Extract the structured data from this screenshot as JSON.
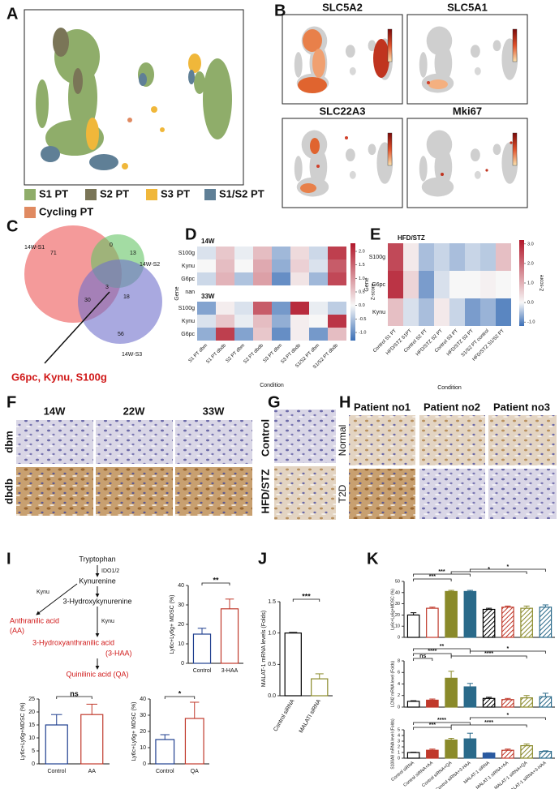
{
  "panel_labels": [
    "A",
    "B",
    "C",
    "D",
    "E",
    "F",
    "G",
    "H",
    "I",
    "J",
    "K"
  ],
  "umap": {
    "legend": [
      {
        "name": "S1 PT",
        "color": "#8fad6a"
      },
      {
        "name": "S2 PT",
        "color": "#7a7557"
      },
      {
        "name": "S3 PT",
        "color": "#f0b73a"
      },
      {
        "name": "S1/S2 PT",
        "color": "#5f7f96"
      },
      {
        "name": "Cycling PT",
        "color": "#e08a61"
      }
    ]
  },
  "feature_plots": [
    "SLC5A2",
    "SLC5A1",
    "SLC22A3",
    "Mki67"
  ],
  "venn": {
    "sets": [
      "14W-S1",
      "14W-S2",
      "14W-S3"
    ],
    "regions": [
      71,
      0,
      13,
      3,
      30,
      18,
      56
    ],
    "callout": "G6pc, Kynu, S100g"
  },
  "heatmap_d": {
    "groups": [
      "14W",
      "33W"
    ],
    "rows": [
      "S100g",
      "Kynu",
      "G6pc",
      "nan",
      "S100g",
      "Kynu",
      "G6pc"
    ],
    "columns": [
      "S1 PT dbm",
      "S1 PT dbdb",
      "S2 PT dbm",
      "S2 PT dbdb",
      "S3 PT dbm",
      "S3 PT dbdb",
      "S1/S2 PT dbm",
      "S1/S2 PT dbdb"
    ],
    "values": [
      [
        -0.2,
        0.5,
        -0.1,
        0.6,
        -0.6,
        0.3,
        -0.3,
        1.9
      ],
      [
        0.0,
        0.6,
        0.0,
        0.8,
        -0.7,
        0.4,
        -0.2,
        1.6
      ],
      [
        -0.3,
        0.7,
        -0.5,
        0.9,
        -1.0,
        0.2,
        -0.6,
        1.8
      ],
      [
        null,
        null,
        null,
        null,
        null,
        null,
        null,
        null
      ],
      [
        -0.8,
        0.1,
        -0.2,
        1.6,
        -0.9,
        2.1,
        -0.1,
        -0.4
      ],
      [
        -0.2,
        0.5,
        -0.1,
        0.6,
        -0.7,
        0.1,
        0.0,
        2.0
      ],
      [
        -0.7,
        1.9,
        -0.8,
        0.5,
        -1.0,
        0.1,
        -0.9,
        0.6
      ]
    ],
    "zlim": [
      -1.3,
      2.3
    ],
    "ticks": [
      {
        "value": 2,
        "label": "2.0"
      },
      {
        "value": 1.5,
        "label": "1.5"
      },
      {
        "value": 1,
        "label": "1.0"
      },
      {
        "value": 0.5,
        "label": "0.5"
      },
      {
        "value": 0,
        "label": "0.0"
      },
      {
        "value": -0.5,
        "label": "-0.5"
      },
      {
        "value": -1,
        "label": "-1.0"
      }
    ],
    "x_label": "Condition",
    "y_label": "Gene",
    "colorbar_label": "Z-score"
  },
  "heatmap_e": {
    "groups": [
      "HFD/STZ"
    ],
    "rows": [
      "S100g",
      "G6pc",
      "Kynu"
    ],
    "columns": [
      "Control S1 PT",
      "HFD/STZ S1PT",
      "Control S2 PT",
      "HFD/STZ S2 PT",
      "Control S3 PT",
      "HFD/STZ S3 PT",
      "S1/S2 PT control",
      "HFD/STZ S1/S2 PT"
    ],
    "values": [
      [
        2.5,
        0.2,
        -0.5,
        -0.3,
        -0.5,
        -0.3,
        -0.4,
        0.8
      ],
      [
        2.8,
        0.5,
        -0.8,
        -0.2,
        0.0,
        0.0,
        0.1,
        0.0
      ],
      [
        0.8,
        -0.2,
        -0.5,
        0.2,
        -0.3,
        -0.8,
        -0.6,
        -1.0
      ]
    ],
    "zlim": [
      -1.2,
      3.2
    ],
    "ticks": [
      {
        "value": 3,
        "label": "3.0"
      },
      {
        "value": 2,
        "label": "2.0"
      },
      {
        "value": 1,
        "label": "1.0"
      },
      {
        "value": 0,
        "label": "0.0"
      },
      {
        "value": -1,
        "label": "-1.0"
      }
    ],
    "x_label": "Condition",
    "y_label": "Gene",
    "colorbar_label": "Z-score"
  },
  "histology": {
    "F": {
      "columns": [
        "14W",
        "22W",
        "33W"
      ],
      "rows": [
        "dbm",
        "dbdb"
      ]
    },
    "G": {
      "rows": [
        "Control",
        "HFD/STZ"
      ]
    },
    "H": {
      "columns": [
        "Patient no1",
        "Patient no2",
        "Patient no3"
      ],
      "rows": [
        "Normal",
        "T2D"
      ]
    }
  },
  "pathway": {
    "nodes": [
      "Tryptophan",
      "Kynurenine",
      "3-Hydroxykynurenine",
      "Anthranilic acid",
      "(AA)",
      "3-Hydroxyanthranilic acid",
      "(3-HAA)",
      "Quinilinic acid (QA)"
    ],
    "enzymes": [
      "IDO1/2",
      "Kynu",
      "Kynu"
    ]
  },
  "chart_data": [
    {
      "type": "bar",
      "y_label": "Ly6c+Ly6g+ MDSC (%)",
      "categories": [
        "Control",
        "3-HAA"
      ],
      "values": [
        15,
        28
      ],
      "errors": [
        3,
        5
      ],
      "colors": [
        "#1f3f8f",
        "#c0392b"
      ],
      "styles": [
        "outline",
        "outline"
      ],
      "ylim": [
        0,
        40
      ],
      "yticks": [
        0,
        10,
        20,
        30,
        40
      ],
      "annotations": [
        "**"
      ]
    },
    {
      "type": "bar",
      "y_label": "Ly6c+Ly6g+MDSC (%)",
      "categories": [
        "Control",
        "AA"
      ],
      "values": [
        15,
        19
      ],
      "errors": [
        4,
        4
      ],
      "colors": [
        "#1f3f8f",
        "#c0392b"
      ],
      "styles": [
        "outline",
        "outline"
      ],
      "ylim": [
        0,
        25
      ],
      "yticks": [
        0,
        5,
        10,
        15,
        20,
        25
      ],
      "annotations": [
        "ns"
      ]
    },
    {
      "type": "bar",
      "y_label": "Ly6c+Ly6g+ MDSC (%)",
      "categories": [
        "Control",
        "QA"
      ],
      "values": [
        15,
        28
      ],
      "errors": [
        3,
        10
      ],
      "colors": [
        "#1f3f8f",
        "#c0392b"
      ],
      "styles": [
        "outline",
        "outline"
      ],
      "ylim": [
        0,
        40
      ],
      "yticks": [
        0,
        10,
        20,
        30,
        40
      ],
      "annotations": [
        "*"
      ]
    },
    {
      "type": "bar",
      "y_label": "MALAT-1 mRNA levels (Folds)",
      "categories": [
        "Control siRNA",
        "MALATI siRNA"
      ],
      "values": [
        1.0,
        0.27
      ],
      "errors": [
        0.01,
        0.08
      ],
      "colors": [
        "#000000",
        "#8a8a2a"
      ],
      "styles": [
        "outline",
        "outline"
      ],
      "ylim": [
        0,
        1.5
      ],
      "yticks": [
        {
          "value": 0,
          "label": "0.0"
        },
        {
          "value": 0.5,
          "label": "0.5"
        },
        {
          "value": 1,
          "label": "1.0"
        },
        {
          "value": 1.5,
          "label": "1.5"
        }
      ],
      "annotations": [
        "***"
      ]
    },
    {
      "type": "bar",
      "y_label": "Ly6c+Ly6g+MDSC (%)",
      "values": [
        20,
        26,
        41,
        41,
        25,
        27,
        26,
        27
      ],
      "errors": [
        2,
        1,
        1,
        1,
        1,
        1,
        2,
        2
      ],
      "colors": [
        "#000000",
        "#c0392b",
        "#8a8a2a",
        "#2a6a8a",
        "#000000",
        "#c0392b",
        "#8a8a2a",
        "#2a6a8a"
      ],
      "styles": [
        "outline",
        "outline",
        "solid",
        "solid",
        "hatch",
        "hatch",
        "hatch",
        "hatch"
      ],
      "ylim": [
        0,
        50
      ],
      "yticks": [
        0,
        10,
        20,
        30,
        40,
        50
      ],
      "annotations": [
        "***",
        "***",
        "*",
        "*"
      ]
    },
    {
      "type": "bar",
      "y_label": "LCN2 mRNA level (Folds)",
      "values": [
        1,
        1.2,
        5,
        3.5,
        1.5,
        1.3,
        1.6,
        1.8
      ],
      "errors": [
        0.1,
        0.2,
        1.2,
        0.6,
        0.2,
        0.2,
        0.4,
        0.6
      ],
      "colors": [
        "#000000",
        "#c0392b",
        "#8a8a2a",
        "#2a6a8a",
        "#000000",
        "#c0392b",
        "#8a8a2a",
        "#2a6a8a"
      ],
      "styles": [
        "outline",
        "solid",
        "solid",
        "solid",
        "hatch",
        "hatch",
        "hatch",
        "hatch"
      ],
      "ylim": [
        0,
        8
      ],
      "yticks": [
        0,
        2,
        4,
        6,
        8
      ],
      "annotations": [
        "ns",
        "****",
        "**",
        "****",
        "*"
      ]
    },
    {
      "type": "bar",
      "y_label": "S100A8 mRNA level (Folds)",
      "categories": [
        "Control siRNA",
        "Control siRNA+AA",
        "Control siRNA+QA",
        "Control siRNA+3-HAA",
        "MALAT-1 siRNA",
        "MALAT-1 siRNA+AA",
        "MALAT-1 siRNA+QA",
        "MALAT-1 siRNA+3-HAA"
      ],
      "values": [
        1,
        1.4,
        3.2,
        3.4,
        0.9,
        1.4,
        2.2,
        1.2
      ],
      "errors": [
        0.05,
        0.2,
        0.3,
        1.0,
        0.05,
        0.2,
        0.3,
        0.1
      ],
      "colors": [
        "#000000",
        "#c0392b",
        "#8a8a2a",
        "#2a6a8a",
        "#2a5aa0",
        "#c0392b",
        "#8a8a2a",
        "#2a6a8a"
      ],
      "styles": [
        "outline",
        "solid",
        "solid",
        "solid",
        "solid",
        "hatch",
        "hatch",
        "hatch"
      ],
      "ylim": [
        0,
        5
      ],
      "yticks": [
        0,
        1,
        2,
        3,
        4,
        5
      ],
      "annotations": [
        "***",
        "****",
        "****",
        "*"
      ]
    }
  ]
}
